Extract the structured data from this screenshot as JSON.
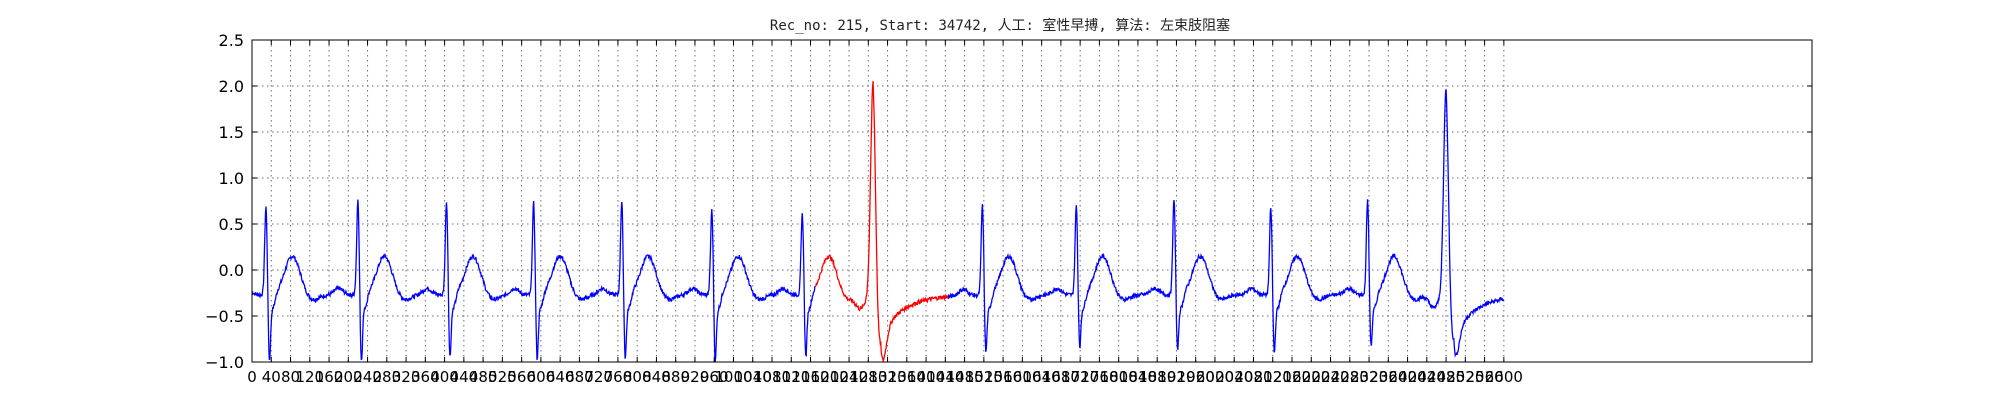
{
  "chart_data": {
    "type": "line",
    "title": "Rec_no: 215, Start: 34742, 人工: 室性早搏, 算法: 左束肢阻塞",
    "xlabel": "",
    "ylabel": "",
    "xlim": [
      0,
      3240
    ],
    "ylim": [
      -1.0,
      2.5
    ],
    "grid": true,
    "y_ticks": [
      -1.0,
      -0.5,
      0.0,
      0.5,
      1.0,
      1.5,
      2.0,
      2.5
    ],
    "y_tick_labels": [
      "−1.0",
      "−0.5",
      "0.0",
      "0.5",
      "1.0",
      "1.5",
      "2.0",
      "2.5"
    ],
    "x_ticks": [
      0,
      40,
      80,
      120,
      160,
      200,
      240,
      280,
      320,
      360,
      400,
      440,
      480,
      520,
      560,
      600,
      640,
      680,
      720,
      760,
      800,
      840,
      880,
      920,
      960,
      1000,
      1040,
      1080,
      1120,
      1160,
      1200,
      1240,
      1280,
      1320,
      1360,
      1400,
      1440,
      1480,
      1520,
      1560,
      1600,
      1640,
      1680,
      1720,
      1760,
      1800,
      1840,
      1880,
      1920,
      1960,
      2000,
      2040,
      2080,
      2120,
      2160,
      2200,
      2240,
      2280,
      2320,
      2360,
      2400,
      2440,
      2480,
      2520,
      2560,
      2600
    ],
    "x_tick_labels": [
      "0",
      "40",
      "80",
      "120",
      "160",
      "200",
      "240",
      "280",
      "320",
      "360",
      "400",
      "440",
      "480",
      "520",
      "560",
      "600",
      "640",
      "680",
      "720",
      "760",
      "800",
      "840",
      "880",
      "920",
      "960",
      "1000",
      "1040",
      "1080",
      "1120",
      "1160",
      "1200",
      "1240",
      "1280",
      "1320",
      "1360",
      "1400",
      "1440",
      "1480",
      "1520",
      "1560",
      "1600",
      "1640",
      "1680",
      "1720",
      "1760",
      "1800",
      "1840",
      "1880",
      "1920",
      "1960",
      "2000",
      "2040",
      "2080",
      "2120",
      "2160",
      "2200",
      "2240",
      "2280",
      "2320",
      "2360",
      "2400",
      "2440",
      "2480",
      "2520",
      "2560",
      "2600"
    ],
    "beats": [
      {
        "r_x": 29,
        "r_peak": 0.7,
        "s_min": -0.95
      },
      {
        "r_x": 220,
        "r_peak": 0.76,
        "s_min": -0.95
      },
      {
        "r_x": 404,
        "r_peak": 0.75,
        "s_min": -0.9
      },
      {
        "r_x": 585,
        "r_peak": 0.74,
        "s_min": -0.93
      },
      {
        "r_x": 768,
        "r_peak": 0.75,
        "s_min": -0.92
      },
      {
        "r_x": 955,
        "r_peak": 0.66,
        "s_min": -0.95
      },
      {
        "r_x": 1143,
        "r_peak": 0.62,
        "s_min": -0.9
      },
      {
        "r_x": 1517,
        "r_peak": 0.71,
        "s_min": -0.85
      },
      {
        "r_x": 1712,
        "r_peak": 0.7,
        "s_min": -0.8
      },
      {
        "r_x": 1915,
        "r_peak": 0.79,
        "s_min": -0.83
      },
      {
        "r_x": 2116,
        "r_peak": 0.68,
        "s_min": -0.86
      },
      {
        "r_x": 2317,
        "r_peak": 0.76,
        "s_min": -0.79
      }
    ],
    "pvc_beats": [
      {
        "r_x": 1290,
        "r_peak": 2.05,
        "s_min": -0.83
      },
      {
        "r_x": 2480,
        "r_peak": 1.98,
        "s_min": -0.77
      }
    ],
    "baseline": -0.27,
    "series": [
      {
        "color": "#0000ff",
        "x_range": [
          0,
          2600
        ]
      },
      {
        "color": "#ff0000",
        "x_range": [
          1170,
          1445
        ]
      }
    ]
  }
}
